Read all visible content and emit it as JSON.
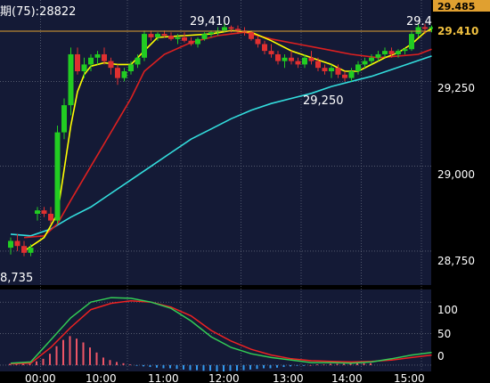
{
  "header": {
    "ma_label": "期(75):28822"
  },
  "axis_right": {
    "ticks": [
      "29,250",
      "29,000",
      "28,750"
    ],
    "tag_high": "29.485",
    "tag_last": "29.410"
  },
  "annotations": {
    "high_left": "29,410",
    "high_right": "29.4",
    "low_mid": "29,250",
    "low_left": "8,735"
  },
  "time_axis": [
    "00:00",
    "10:00",
    "11:00",
    "12:00",
    "13:00",
    "14:00",
    "15:00"
  ],
  "osc_axis": [
    "100",
    "50",
    "0"
  ],
  "colors": {
    "background": "#141a36",
    "grid": "#7a8090",
    "up": "#22cc22",
    "down": "#e03030",
    "ma_fast": "#ffff00",
    "ma_mid": "#dd2020",
    "ma_slow": "#33dddd",
    "last_line": "#e0a030",
    "osc_green": "#33cc55",
    "osc_red": "#ee2222",
    "hist_pos": "#ee5566",
    "hist_neg": "#3399ee"
  },
  "chart_data": {
    "type": "candlestick",
    "y_range": [
      28650,
      29490
    ],
    "x_range": [
      0,
      73
    ],
    "last_price": 29410,
    "candles": [
      [
        28760,
        28790,
        28740,
        28780
      ],
      [
        28780,
        28800,
        28750,
        28765
      ],
      [
        28765,
        28780,
        28735,
        28745
      ],
      [
        28745,
        28770,
        28735,
        28760
      ],
      [
        28860,
        28880,
        28840,
        28870
      ],
      [
        28870,
        28880,
        28850,
        28860
      ],
      [
        28860,
        28880,
        28830,
        28840
      ],
      [
        28840,
        29120,
        28830,
        29100
      ],
      [
        29100,
        29200,
        29080,
        29180
      ],
      [
        29180,
        29350,
        29150,
        29330
      ],
      [
        29330,
        29350,
        29270,
        29280
      ],
      [
        29280,
        29320,
        29260,
        29300
      ],
      [
        29300,
        29330,
        29280,
        29320
      ],
      [
        29320,
        29340,
        29300,
        29330
      ],
      [
        29330,
        29350,
        29300,
        29310
      ],
      [
        29310,
        29320,
        29270,
        29290
      ],
      [
        29290,
        29300,
        29240,
        29260
      ],
      [
        29260,
        29290,
        29250,
        29280
      ],
      [
        29280,
        29310,
        29270,
        29300
      ],
      [
        29300,
        29330,
        29290,
        29320
      ],
      [
        29320,
        29400,
        29310,
        29390
      ],
      [
        29390,
        29400,
        29370,
        29380
      ],
      [
        29380,
        29395,
        29370,
        29390
      ],
      [
        29390,
        29400,
        29380,
        29385
      ],
      [
        29385,
        29395,
        29370,
        29375
      ],
      [
        29375,
        29390,
        29360,
        29380
      ],
      [
        29380,
        29395,
        29365,
        29370
      ],
      [
        29370,
        29380,
        29355,
        29360
      ],
      [
        29360,
        29380,
        29350,
        29375
      ],
      [
        29375,
        29395,
        29370,
        29390
      ],
      [
        29390,
        29400,
        29380,
        29395
      ],
      [
        29395,
        29410,
        29385,
        29400
      ],
      [
        29400,
        29425,
        29395,
        29410
      ],
      [
        29410,
        29415,
        29395,
        29405
      ],
      [
        29405,
        29415,
        29390,
        29400
      ],
      [
        29400,
        29410,
        29385,
        29395
      ],
      [
        29395,
        29400,
        29370,
        29375
      ],
      [
        29375,
        29385,
        29350,
        29360
      ],
      [
        29360,
        29370,
        29330,
        29340
      ],
      [
        29340,
        29360,
        29320,
        29330
      ],
      [
        29330,
        29340,
        29300,
        29310
      ],
      [
        29310,
        29330,
        29290,
        29320
      ],
      [
        29320,
        29340,
        29300,
        29310
      ],
      [
        29310,
        29320,
        29290,
        29300
      ],
      [
        29300,
        29330,
        29290,
        29320
      ],
      [
        29320,
        29340,
        29300,
        29310
      ],
      [
        29310,
        29320,
        29280,
        29290
      ],
      [
        29290,
        29300,
        29270,
        29280
      ],
      [
        29280,
        29300,
        29260,
        29290
      ],
      [
        29290,
        29300,
        29260,
        29270
      ],
      [
        29270,
        29280,
        29250,
        29260
      ],
      [
        29260,
        29290,
        29250,
        29280
      ],
      [
        29280,
        29310,
        29270,
        29300
      ],
      [
        29300,
        29320,
        29290,
        29310
      ],
      [
        29310,
        29330,
        29300,
        29320
      ],
      [
        29320,
        29340,
        29310,
        29330
      ],
      [
        29330,
        29350,
        29320,
        29340
      ],
      [
        29340,
        29350,
        29320,
        29330
      ],
      [
        29330,
        29345,
        29320,
        29340
      ],
      [
        29340,
        29350,
        29330,
        29345
      ],
      [
        29345,
        29400,
        29340,
        29390
      ],
      [
        29390,
        29420,
        29380,
        29410
      ],
      [
        29410,
        29420,
        29390,
        29405
      ],
      [
        29405,
        29415,
        29395,
        29410
      ]
    ],
    "ma_fast": [
      [
        2,
        28750
      ],
      [
        5,
        28790
      ],
      [
        7,
        28860
      ],
      [
        8,
        28990
      ],
      [
        9,
        29120
      ],
      [
        10,
        29220
      ],
      [
        11,
        29270
      ],
      [
        12,
        29295
      ],
      [
        14,
        29305
      ],
      [
        16,
        29300
      ],
      [
        18,
        29300
      ],
      [
        20,
        29340
      ],
      [
        22,
        29380
      ],
      [
        26,
        29385
      ],
      [
        30,
        29390
      ],
      [
        33,
        29400
      ],
      [
        36,
        29395
      ],
      [
        39,
        29370
      ],
      [
        42,
        29340
      ],
      [
        45,
        29320
      ],
      [
        48,
        29300
      ],
      [
        50,
        29280
      ],
      [
        52,
        29280
      ],
      [
        54,
        29300
      ],
      [
        56,
        29320
      ],
      [
        58,
        29335
      ],
      [
        60,
        29360
      ],
      [
        62,
        29395
      ],
      [
        63,
        29405
      ]
    ],
    "ma_mid": [
      [
        2,
        28790
      ],
      [
        5,
        28795
      ],
      [
        7,
        28830
      ],
      [
        9,
        28900
      ],
      [
        12,
        29000
      ],
      [
        15,
        29100
      ],
      [
        18,
        29200
      ],
      [
        20,
        29280
      ],
      [
        23,
        29330
      ],
      [
        27,
        29365
      ],
      [
        31,
        29385
      ],
      [
        35,
        29395
      ],
      [
        39,
        29375
      ],
      [
        43,
        29360
      ],
      [
        47,
        29345
      ],
      [
        51,
        29330
      ],
      [
        55,
        29320
      ],
      [
        58,
        29325
      ],
      [
        61,
        29330
      ],
      [
        63,
        29345
      ]
    ],
    "ma_slow": [
      [
        0,
        28800
      ],
      [
        3,
        28795
      ],
      [
        6,
        28815
      ],
      [
        9,
        28850
      ],
      [
        12,
        28880
      ],
      [
        15,
        28920
      ],
      [
        18,
        28960
      ],
      [
        21,
        29000
      ],
      [
        24,
        29040
      ],
      [
        27,
        29080
      ],
      [
        30,
        29110
      ],
      [
        33,
        29140
      ],
      [
        36,
        29165
      ],
      [
        39,
        29185
      ],
      [
        42,
        29200
      ],
      [
        45,
        29215
      ],
      [
        48,
        29235
      ],
      [
        51,
        29250
      ],
      [
        54,
        29265
      ],
      [
        57,
        29285
      ],
      [
        60,
        29305
      ],
      [
        63,
        29325
      ]
    ],
    "oscillator": {
      "y_range": [
        -10,
        120
      ],
      "line_green": [
        [
          0,
          3
        ],
        [
          3,
          5
        ],
        [
          6,
          40
        ],
        [
          9,
          75
        ],
        [
          12,
          100
        ],
        [
          15,
          107
        ],
        [
          18,
          106
        ],
        [
          21,
          100
        ],
        [
          24,
          90
        ],
        [
          27,
          70
        ],
        [
          30,
          45
        ],
        [
          33,
          28
        ],
        [
          36,
          18
        ],
        [
          39,
          12
        ],
        [
          42,
          8
        ],
        [
          45,
          4
        ],
        [
          48,
          4
        ],
        [
          51,
          3
        ],
        [
          54,
          5
        ],
        [
          57,
          10
        ],
        [
          60,
          16
        ],
        [
          63,
          20
        ]
      ],
      "line_red": [
        [
          0,
          2
        ],
        [
          3,
          3
        ],
        [
          6,
          28
        ],
        [
          9,
          60
        ],
        [
          12,
          88
        ],
        [
          15,
          98
        ],
        [
          18,
          102
        ],
        [
          21,
          100
        ],
        [
          24,
          92
        ],
        [
          27,
          78
        ],
        [
          30,
          55
        ],
        [
          33,
          38
        ],
        [
          36,
          25
        ],
        [
          39,
          16
        ],
        [
          42,
          10
        ],
        [
          45,
          7
        ],
        [
          48,
          6
        ],
        [
          51,
          5
        ],
        [
          54,
          6
        ],
        [
          57,
          8
        ],
        [
          60,
          12
        ],
        [
          63,
          16
        ]
      ],
      "histogram": [
        2,
        2,
        3,
        4,
        6,
        10,
        18,
        30,
        40,
        46,
        42,
        36,
        28,
        20,
        12,
        8,
        5,
        3,
        1,
        -1,
        -2,
        -3,
        -4,
        -5,
        -5,
        -6,
        -7,
        -8,
        -8,
        -9,
        -9,
        -10,
        -10,
        -9,
        -9,
        -8,
        -7,
        -6,
        -5,
        -5,
        -4,
        -3,
        -2,
        -1,
        -1,
        0,
        1,
        1,
        2,
        2,
        2,
        3,
        3,
        3,
        3
      ]
    }
  }
}
